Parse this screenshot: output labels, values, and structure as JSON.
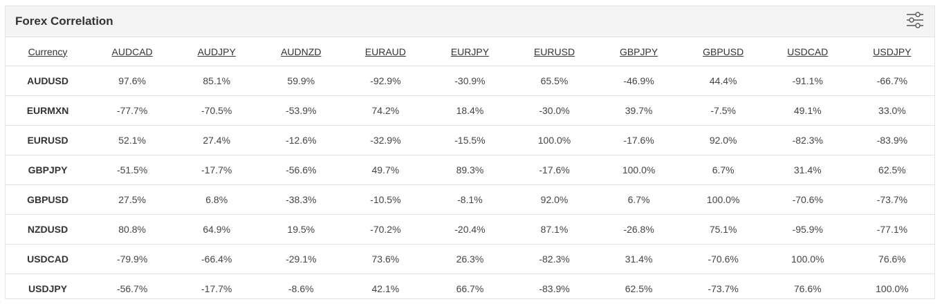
{
  "widget": {
    "title": "Forex Correlation",
    "settings_icon": "sliders-icon"
  },
  "table": {
    "headers": [
      "Currency",
      "AUDCAD",
      "AUDJPY",
      "AUDNZD",
      "EURAUD",
      "EURJPY",
      "EURUSD",
      "GBPJPY",
      "GBPUSD",
      "USDCAD",
      "USDJPY"
    ],
    "rows": [
      {
        "label": "AUDUSD",
        "cells": [
          "97.6%",
          "85.1%",
          "59.9%",
          "-92.9%",
          "-30.9%",
          "65.5%",
          "-46.9%",
          "44.4%",
          "-91.1%",
          "-66.7%"
        ]
      },
      {
        "label": "EURMXN",
        "cells": [
          "-77.7%",
          "-70.5%",
          "-53.9%",
          "74.2%",
          "18.4%",
          "-30.0%",
          "39.7%",
          "-7.5%",
          "49.1%",
          "33.0%"
        ]
      },
      {
        "label": "EURUSD",
        "cells": [
          "52.1%",
          "27.4%",
          "-12.6%",
          "-32.9%",
          "-15.5%",
          "100.0%",
          "-17.6%",
          "92.0%",
          "-82.3%",
          "-83.9%"
        ]
      },
      {
        "label": "GBPJPY",
        "cells": [
          "-51.5%",
          "-17.7%",
          "-56.6%",
          "49.7%",
          "89.3%",
          "-17.6%",
          "100.0%",
          "6.7%",
          "31.4%",
          "62.5%"
        ]
      },
      {
        "label": "GBPUSD",
        "cells": [
          "27.5%",
          "6.8%",
          "-38.3%",
          "-10.5%",
          "-8.1%",
          "92.0%",
          "6.7%",
          "100.0%",
          "-70.6%",
          "-73.7%"
        ]
      },
      {
        "label": "NZDUSD",
        "cells": [
          "80.8%",
          "64.9%",
          "19.5%",
          "-70.2%",
          "-20.4%",
          "87.1%",
          "-26.8%",
          "75.1%",
          "-95.9%",
          "-77.1%"
        ]
      },
      {
        "label": "USDCAD",
        "cells": [
          "-79.9%",
          "-66.4%",
          "-29.1%",
          "73.6%",
          "26.3%",
          "-82.3%",
          "31.4%",
          "-70.6%",
          "100.0%",
          "76.6%"
        ]
      },
      {
        "label": "USDJPY",
        "cells": [
          "-56.7%",
          "-17.7%",
          "-8.6%",
          "42.1%",
          "66.7%",
          "-83.9%",
          "62.5%",
          "-73.7%",
          "76.6%",
          "100.0%"
        ]
      }
    ]
  }
}
